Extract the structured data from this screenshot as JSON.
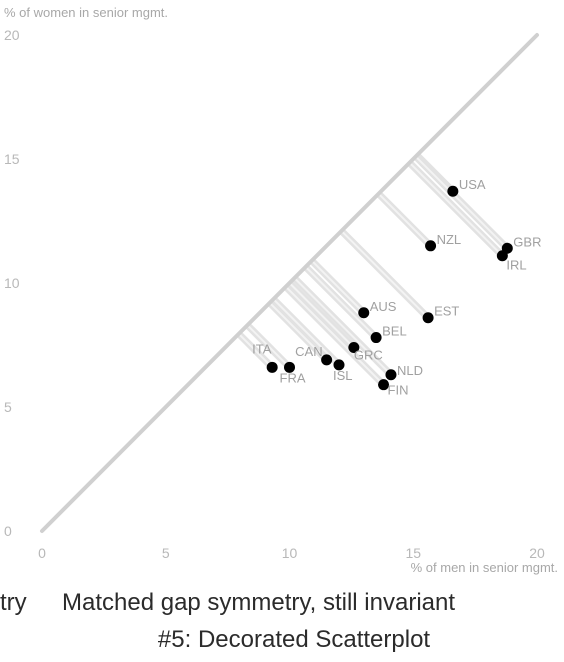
{
  "chart_data": {
    "type": "scatter",
    "title": "Matched gap symmetry, still invariant",
    "subtitle": "#5: Decorated Scatterplot",
    "caption_left_fragment": "try",
    "xlabel": "% of men in senior mgmt.",
    "ylabel": "% of women in senior mgmt.",
    "xlim": [
      0,
      20
    ],
    "ylim": [
      0,
      20
    ],
    "xticks": [
      "0",
      "5",
      "10",
      "15",
      "20"
    ],
    "yticks": [
      "0",
      "5",
      "10",
      "15",
      "20"
    ],
    "grid": false,
    "reference_line": "y = x",
    "points": [
      {
        "label": "USA",
        "x": 16.6,
        "y": 13.7
      },
      {
        "label": "GBR",
        "x": 18.8,
        "y": 11.4
      },
      {
        "label": "IRL",
        "x": 18.6,
        "y": 11.1
      },
      {
        "label": "NZL",
        "x": 15.7,
        "y": 11.5
      },
      {
        "label": "AUS",
        "x": 13.0,
        "y": 8.8
      },
      {
        "label": "EST",
        "x": 15.6,
        "y": 8.6
      },
      {
        "label": "BEL",
        "x": 13.5,
        "y": 7.8
      },
      {
        "label": "CAN",
        "x": 11.5,
        "y": 6.9
      },
      {
        "label": "GRC",
        "x": 12.6,
        "y": 7.4
      },
      {
        "label": "ITA",
        "x": 9.3,
        "y": 6.6
      },
      {
        "label": "FRA",
        "x": 10.0,
        "y": 6.6
      },
      {
        "label": "ISL",
        "x": 12.0,
        "y": 6.7
      },
      {
        "label": "NLD",
        "x": 14.1,
        "y": 6.3
      },
      {
        "label": "FIN",
        "x": 13.8,
        "y": 5.9
      }
    ],
    "colors": {
      "points": "#000000",
      "diagonal": "#d0d0d0",
      "gap_lines": "#e2e2e2",
      "labels": "#a0a0a0"
    }
  }
}
